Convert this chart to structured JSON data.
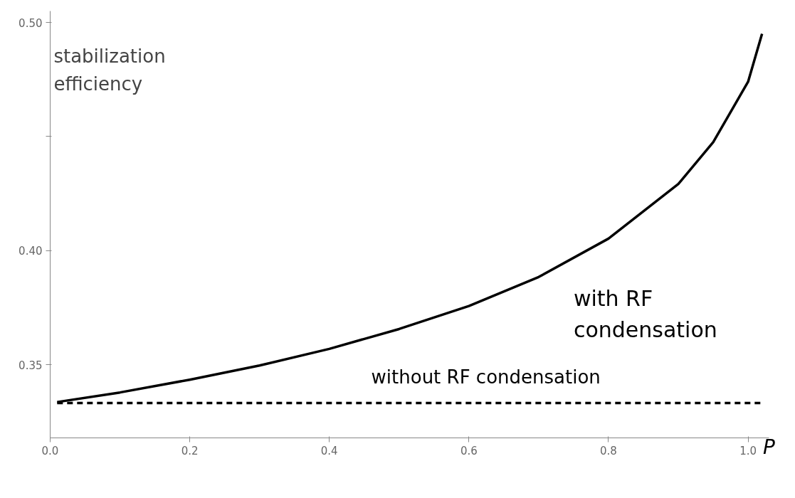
{
  "chart_data": {
    "type": "line",
    "xlabel": "P",
    "ylabel": "stabilization efficiency",
    "xlim": [
      0,
      1.03
    ],
    "ylim": [
      0.318,
      0.505
    ],
    "xticks": [
      {
        "value": 0,
        "label": "0.0"
      },
      {
        "value": 0.2,
        "label": "0.2"
      },
      {
        "value": 0.4,
        "label": "0.4"
      },
      {
        "value": 0.6,
        "label": "0.6"
      },
      {
        "value": 0.8,
        "label": "0.8"
      },
      {
        "value": 1,
        "label": "1.0"
      }
    ],
    "yticks": [
      {
        "value": 0.35,
        "label": "0.35"
      },
      {
        "value": 0.4,
        "label": "0.40"
      },
      {
        "value": 0.45,
        "label": null
      },
      {
        "value": 0.5,
        "label": "0.50"
      }
    ],
    "grid": false,
    "legend": false,
    "marker": "none",
    "series": [
      {
        "name": "with RF\ncondensation",
        "color": "#000000",
        "line_style": "solid",
        "x": [
          0.01,
          0.1,
          0.2,
          0.3,
          0.4,
          0.5,
          0.6,
          0.7,
          0.8,
          0.9,
          0.95,
          1.0,
          1.02
        ],
        "values": [
          0.3337,
          0.3379,
          0.3435,
          0.3497,
          0.357,
          0.3657,
          0.3758,
          0.3885,
          0.4053,
          0.4292,
          0.4475,
          0.474,
          0.495
        ]
      },
      {
        "name": "without RF condensation",
        "color": "#000000",
        "line_style": "dashed",
        "x": [
          0.01,
          1.02
        ],
        "values": [
          0.3333,
          0.3333
        ]
      }
    ]
  }
}
